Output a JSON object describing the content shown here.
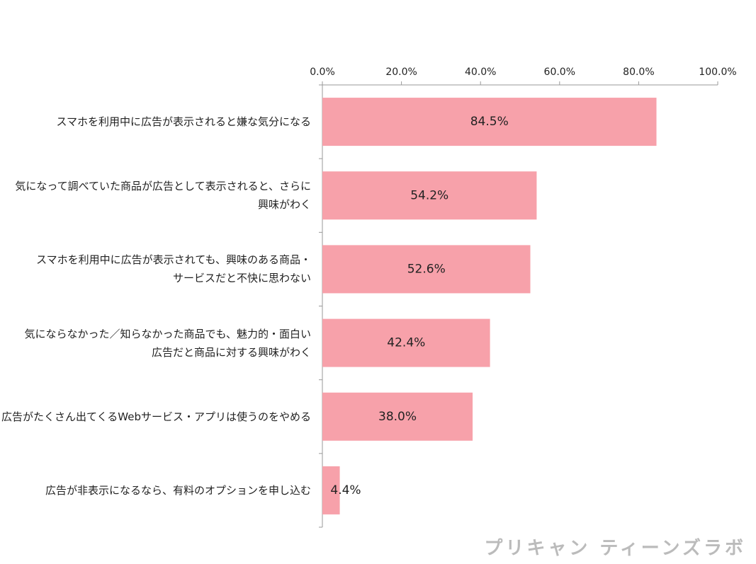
{
  "chart_data": {
    "type": "bar",
    "orientation": "horizontal",
    "categories": [
      "スマホを利用中に広告が表示されると嫌な気分になる",
      "気になって調べていた商品が広告として表示されると、さらに\n興味がわく",
      "スマホを利用中に広告が表示されても、興味のある商品・\nサービスだと不快に思わない",
      "気にならなかった／知らなかった商品でも、魅力的・面白い\n広告だと商品に対する興味がわく",
      "広告がたくさん出てくるWebサービス・アプリは使うのをやめる",
      "広告が非表示になるなら、有料のオプションを申し込む"
    ],
    "values": [
      84.5,
      54.2,
      52.6,
      42.4,
      38.0,
      4.4
    ],
    "value_labels": [
      "84.5%",
      "54.2%",
      "52.6%",
      "42.4%",
      "38.0%",
      "4.4%"
    ],
    "color": "#f7a1aa",
    "xlim": [
      0,
      100
    ],
    "xticks": [
      {
        "value": 0,
        "label": "0.0%"
      },
      {
        "value": 20,
        "label": "20.0%"
      },
      {
        "value": 40,
        "label": "40.0%"
      },
      {
        "value": 60,
        "label": "60.0%"
      },
      {
        "value": 80,
        "label": "80.0%"
      },
      {
        "value": 100,
        "label": "100.0%"
      }
    ],
    "source": "プリキャン ティーンズラボ"
  }
}
